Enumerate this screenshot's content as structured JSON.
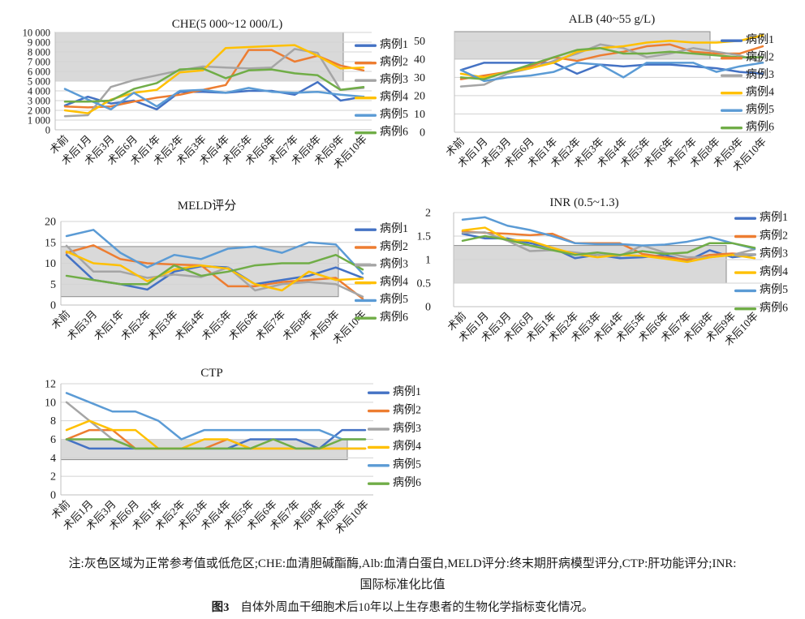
{
  "figure": {
    "caption_line1": "注:灰色区域为正常参考值或低危区;CHE:血清胆碱酯酶,Alb:血清白蛋白,MELD评分:终末期肝病模型评分,CTP:肝功能评分;INR:",
    "caption_line2": "国际标准化比值",
    "figure_label": "图3",
    "figure_caption": "自体外周血干细胞术后10年以上生存患者的生物化学指标变化情况。"
  },
  "style": {
    "series_colors": [
      "#4472C4",
      "#ED7D31",
      "#A5A5A5",
      "#FFC000",
      "#5B9BD5",
      "#70AD47"
    ],
    "band_fill": "#D9D9D9",
    "band_border": "#8C8C8C",
    "gridline": "#D3D3D3",
    "axis_line": "#BFBFBF",
    "text_color": "#1A1A1A",
    "background": "#FFFFFF"
  },
  "case_names": [
    "病例1",
    "病例2",
    "病例3",
    "病例4",
    "病例5",
    "病例6"
  ],
  "chart_data": [
    {
      "id": "che",
      "type": "line",
      "title": "CHE(5 000~12 000/L)",
      "legend_position": "right",
      "grid": true,
      "ylim": [
        0,
        10000
      ],
      "y_ticks": [
        0,
        1000,
        2000,
        3000,
        4000,
        5000,
        6000,
        7000,
        8000,
        9000,
        10000
      ],
      "y_tick_labels": [
        "0",
        "1 000",
        "2 000",
        "3 000",
        "4 000",
        "5 000",
        "6 000",
        "7 000",
        "8 000",
        "9 000",
        "10 000"
      ],
      "normal_band": [
        5000,
        10000
      ],
      "categories": [
        "术前",
        "术后1月",
        "术后3月",
        "术后6月",
        "术后1年",
        "术后2年",
        "术后3年",
        "术后4年",
        "术后5年",
        "术后6年",
        "术后7年",
        "术后8年",
        "术后9年",
        "术后10年"
      ],
      "series": [
        {
          "name": "病例1",
          "values": [
            2500,
            3400,
            2700,
            3000,
            2100,
            3900,
            3900,
            3800,
            4000,
            4000,
            3600,
            4900,
            3000,
            3400
          ]
        },
        {
          "name": "病例2",
          "values": [
            2400,
            2300,
            2400,
            2900,
            3300,
            3600,
            4100,
            4600,
            8200,
            8200,
            7000,
            7600,
            6600,
            6100
          ]
        },
        {
          "name": "病例3",
          "values": [
            1400,
            1500,
            4400,
            5100,
            5600,
            6100,
            6500,
            6400,
            6300,
            6400,
            8300,
            7900,
            4100,
            4300
          ]
        },
        {
          "name": "病例4",
          "values": [
            2000,
            1700,
            3100,
            3800,
            4100,
            5900,
            6100,
            8400,
            8500,
            8600,
            8700,
            7600,
            6300,
            6400
          ]
        },
        {
          "name": "病例5",
          "values": [
            4200,
            3100,
            2100,
            3800,
            2400,
            4000,
            4100,
            3800,
            4300,
            3900,
            3800,
            3900,
            3600,
            3400
          ]
        },
        {
          "name": "病例6",
          "values": [
            2900,
            2900,
            3000,
            4200,
            4800,
            6200,
            6300,
            5300,
            6100,
            6200,
            5800,
            5600,
            4100,
            4400
          ]
        }
      ]
    },
    {
      "id": "alb",
      "type": "line",
      "title": "ALB (40~55 g/L)",
      "legend_position": "right",
      "grid": true,
      "ylim": [
        0,
        55
      ],
      "y_ticks": [
        0,
        10,
        20,
        30,
        40,
        50
      ],
      "y_tick_labels": [
        "0",
        "10",
        "20",
        "30",
        "40",
        "50"
      ],
      "normal_band": [
        40,
        55
      ],
      "categories": [
        "术前",
        "术后1月",
        "术后3月",
        "术后6月",
        "术后1年",
        "术后2年",
        "术后3年",
        "术后4年",
        "术后5年",
        "术后6年",
        "术后7年",
        "术后8年",
        "术后9年",
        "术后10年"
      ],
      "series": [
        {
          "name": "病例1",
          "values": [
            34,
            38,
            38,
            38,
            38,
            32,
            37,
            36,
            37,
            37,
            36,
            35,
            33,
            32
          ]
        },
        {
          "name": "病例2",
          "values": [
            29,
            31,
            33,
            36,
            41,
            39,
            42,
            44,
            47,
            48,
            44,
            43,
            43,
            47
          ]
        },
        {
          "name": "病例3",
          "values": [
            25,
            26,
            32,
            35,
            39,
            43,
            48,
            46,
            41,
            43,
            46,
            44,
            42,
            38
          ]
        },
        {
          "name": "病例4",
          "values": [
            32,
            30,
            33,
            35,
            38,
            44,
            46,
            47,
            49,
            50,
            49,
            49,
            50,
            53
          ]
        },
        {
          "name": "病例5",
          "values": [
            34,
            28,
            30,
            31,
            33,
            38,
            37,
            30,
            38,
            38,
            38,
            33,
            36,
            38
          ]
        },
        {
          "name": "病例6",
          "values": [
            30,
            29,
            33,
            37,
            41,
            45,
            46,
            43,
            43,
            44,
            43,
            42,
            41,
            41
          ]
        }
      ]
    },
    {
      "id": "meld",
      "type": "line",
      "title": "MELD评分",
      "legend_position": "right",
      "grid": true,
      "ylim": [
        0,
        20
      ],
      "y_ticks": [
        0,
        5,
        10,
        15,
        20
      ],
      "y_tick_labels": [
        "0",
        "5",
        "10",
        "15",
        "20"
      ],
      "normal_band": [
        2,
        14
      ],
      "categories": [
        "术前",
        "术后3月",
        "术后1年",
        "术后2年",
        "术后3年",
        "术后4年",
        "术后5年",
        "术后6年",
        "术后7年",
        "术后8年",
        "术后9年",
        "术后10年"
      ],
      "series": [
        {
          "name": "病例1",
          "values": [
            12,
            6,
            5,
            3.7,
            8,
            9.3,
            9,
            5,
            6,
            7,
            9,
            6.5
          ]
        },
        {
          "name": "病例2",
          "values": [
            12.5,
            14.3,
            11,
            10,
            9.7,
            9.5,
            4.5,
            4.5,
            5.5,
            6,
            6.5,
            1.5
          ]
        },
        {
          "name": "病例3",
          "values": [
            14.2,
            8,
            8,
            6.5,
            7.3,
            6.7,
            9,
            3.5,
            5,
            5.5,
            5,
            2
          ]
        },
        {
          "name": "病例4",
          "values": [
            12.8,
            10,
            9.5,
            5.7,
            8.5,
            9.5,
            8.7,
            5,
            3.5,
            8,
            6,
            6.3
          ]
        },
        {
          "name": "病例5",
          "values": [
            16.5,
            18,
            12.5,
            9,
            12,
            11,
            13.5,
            14,
            12.5,
            15,
            14.5,
            7.5
          ]
        },
        {
          "name": "病例6",
          "values": [
            7,
            6,
            5,
            5,
            9.5,
            7,
            8,
            9.5,
            10,
            10,
            12,
            8.5
          ]
        }
      ]
    },
    {
      "id": "inr",
      "type": "line",
      "title": "INR (0.5~1.3)",
      "legend_position": "right",
      "grid": true,
      "ylim": [
        0,
        2
      ],
      "y_ticks": [
        0,
        0.5,
        1,
        1.5,
        2
      ],
      "y_tick_labels": [
        "0",
        "0.5",
        "1",
        "1.5",
        "2"
      ],
      "normal_band": [
        0.5,
        1.3
      ],
      "categories": [
        "术前",
        "术后1月",
        "术后3月",
        "术后6月",
        "术后1年",
        "术后2年",
        "术后3年",
        "术后4年",
        "术后5年",
        "术后6年",
        "术后7年",
        "术后8年",
        "术后9年",
        "术后10年"
      ],
      "series": [
        {
          "name": "病例1",
          "values": [
            1.55,
            1.45,
            1.45,
            1.35,
            1.25,
            1.03,
            1.1,
            1.03,
            1.05,
            1.1,
            0.97,
            1.2,
            1.05,
            1.1
          ]
        },
        {
          "name": "病例2",
          "values": [
            1.6,
            1.57,
            1.55,
            1.52,
            1.55,
            1.35,
            1.35,
            1.35,
            1.12,
            1.05,
            1.0,
            1.1,
            1.13,
            1.1
          ]
        },
        {
          "name": "病例3",
          "values": [
            1.57,
            1.58,
            1.4,
            1.18,
            1.2,
            1.15,
            1.1,
            1.08,
            1.3,
            1.15,
            1.05,
            1.05,
            1.1,
            1.22
          ]
        },
        {
          "name": "病例4",
          "values": [
            1.62,
            1.68,
            1.42,
            1.4,
            1.25,
            1.12,
            1.05,
            1.1,
            1.08,
            1.02,
            0.95,
            1.05,
            1.1,
            1.03
          ]
        },
        {
          "name": "病例5",
          "values": [
            1.85,
            1.9,
            1.72,
            1.63,
            1.5,
            1.35,
            1.33,
            1.33,
            1.3,
            1.32,
            1.38,
            1.48,
            1.35,
            1.23
          ]
        },
        {
          "name": "病例6",
          "values": [
            1.4,
            1.5,
            1.42,
            1.3,
            1.2,
            1.1,
            1.15,
            1.1,
            1.18,
            1.12,
            1.15,
            1.35,
            1.35,
            1.25
          ]
        }
      ]
    },
    {
      "id": "ctp",
      "type": "line",
      "title": "CTP",
      "legend_position": "right",
      "grid": true,
      "ylim": [
        0,
        12
      ],
      "y_ticks": [
        0,
        2,
        4,
        6,
        8,
        10,
        12
      ],
      "y_tick_labels": [
        "0",
        "2",
        "4",
        "6",
        "8",
        "10",
        "12"
      ],
      "normal_band": [
        3.8,
        6
      ],
      "categories": [
        "术前",
        "术后1月",
        "术后3月",
        "术后6月",
        "术后1年",
        "术后2年",
        "术后3年",
        "术后4年",
        "术后5年",
        "术后6年",
        "术后7年",
        "术后8年",
        "术后9年",
        "术后10年"
      ],
      "series": [
        {
          "name": "病例1",
          "values": [
            6,
            5,
            5,
            5,
            5,
            5,
            5,
            5,
            6,
            6,
            6,
            5,
            7,
            7
          ]
        },
        {
          "name": "病例2",
          "values": [
            6,
            7,
            7,
            5,
            5,
            5,
            5,
            6,
            5,
            5,
            5,
            5,
            5,
            5
          ]
        },
        {
          "name": "病例3",
          "values": [
            10,
            8,
            6,
            5,
            5,
            5,
            5,
            5,
            5,
            5,
            5,
            5,
            5,
            5
          ]
        },
        {
          "name": "病例4",
          "values": [
            7,
            8,
            7,
            7,
            5,
            5,
            6,
            6,
            5,
            5,
            5,
            5,
            5,
            5
          ]
        },
        {
          "name": "病例5",
          "values": [
            11,
            10,
            9,
            9,
            8,
            6,
            7,
            7,
            7,
            7,
            7,
            7,
            6,
            6
          ]
        },
        {
          "name": "病例6",
          "values": [
            6,
            6,
            6,
            5,
            5,
            5,
            5,
            5,
            5,
            6,
            5,
            5,
            6,
            6
          ]
        }
      ]
    }
  ]
}
